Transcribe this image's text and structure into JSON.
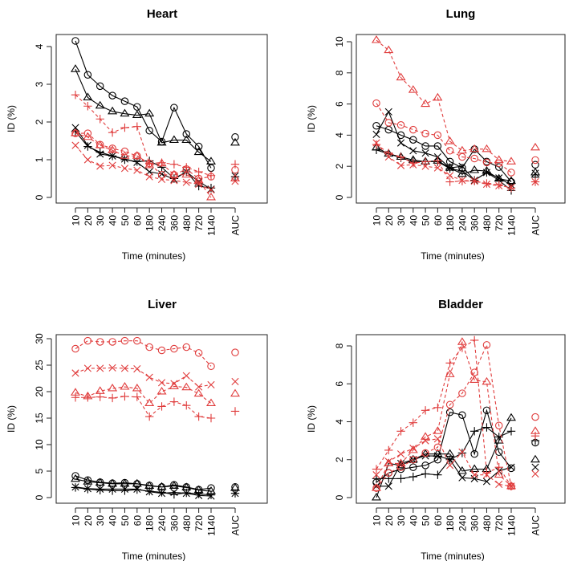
{
  "chart_data": [
    {
      "type": "line",
      "title": "Heart",
      "xlabel": "Time (minutes)",
      "ylabel": "ID (%)",
      "categories": [
        "10",
        "20",
        "30",
        "40",
        "50",
        "60",
        "180",
        "240",
        "360",
        "480",
        "720",
        "1140"
      ],
      "extra_category": "AUC",
      "yticks": [
        0,
        1,
        2,
        3,
        4
      ],
      "ylim": [
        0,
        4
      ],
      "series": [
        {
          "name": "black-circle",
          "color": "#000000",
          "marker": "circle",
          "dashed": false,
          "values": [
            4.15,
            3.25,
            2.95,
            2.7,
            2.55,
            2.4,
            1.77,
            1.48,
            2.38,
            1.68,
            1.35,
            0.78
          ],
          "auc": 1.6
        },
        {
          "name": "black-triangle",
          "color": "#000000",
          "marker": "triangle",
          "dashed": false,
          "values": [
            3.4,
            2.65,
            2.43,
            2.28,
            2.22,
            2.18,
            2.22,
            1.45,
            1.52,
            1.52,
            1.2,
            0.95
          ],
          "auc": 1.45
        },
        {
          "name": "black-plus",
          "color": "#000000",
          "marker": "plus",
          "dashed": false,
          "values": [
            1.75,
            1.35,
            1.2,
            1.1,
            1.0,
            0.95,
            0.97,
            0.8,
            0.5,
            0.68,
            0.3,
            0.25
          ],
          "auc": 0.55
        },
        {
          "name": "black-x",
          "color": "#000000",
          "marker": "x",
          "dashed": false,
          "values": [
            1.85,
            1.38,
            1.15,
            1.1,
            1.02,
            0.93,
            0.68,
            0.62,
            0.48,
            0.68,
            0.42,
            0.22
          ],
          "auc": 0.57
        },
        {
          "name": "red-circle",
          "color": "#e03c3c",
          "marker": "circle",
          "dashed": true,
          "values": [
            1.7,
            1.7,
            1.4,
            1.3,
            1.22,
            1.1,
            0.9,
            0.6,
            0.6,
            0.75,
            0.5,
            0.55
          ],
          "auc": 0.73
        },
        {
          "name": "red-triangle",
          "color": "#e03c3c",
          "marker": "triangle",
          "dashed": true,
          "values": [
            1.7,
            1.6,
            1.38,
            1.25,
            1.1,
            1.1,
            0.85,
            0.9,
            0.6,
            0.6,
            0.45,
            0.0
          ],
          "auc": 0.5
        },
        {
          "name": "red-plus",
          "color": "#e03c3c",
          "marker": "plus",
          "dashed": true,
          "values": [
            2.72,
            2.42,
            2.08,
            1.72,
            1.85,
            1.88,
            0.9,
            0.92,
            0.88,
            0.8,
            0.68,
            0.58
          ],
          "auc": 0.88
        },
        {
          "name": "red-x",
          "color": "#e03c3c",
          "marker": "x",
          "dashed": true,
          "values": [
            1.38,
            1.0,
            0.83,
            0.85,
            0.77,
            0.72,
            0.55,
            0.48,
            0.45,
            0.4,
            0.35,
            0.2
          ],
          "auc": 0.43
        }
      ]
    },
    {
      "type": "line",
      "title": "Lung",
      "xlabel": "Time (minutes)",
      "ylabel": "ID (%)",
      "categories": [
        "10",
        "20",
        "30",
        "40",
        "50",
        "60",
        "180",
        "240",
        "360",
        "480",
        "720",
        "1140"
      ],
      "extra_category": "AUC",
      "yticks": [
        0,
        2,
        4,
        6,
        8,
        10
      ],
      "ylim": [
        0,
        10
      ],
      "series": [
        {
          "name": "black-circle",
          "color": "#000000",
          "marker": "circle",
          "dashed": false,
          "values": [
            4.6,
            4.35,
            4.0,
            3.7,
            3.3,
            3.3,
            2.3,
            1.9,
            3.1,
            2.3,
            1.95,
            1.0
          ],
          "auc": 2.1
        },
        {
          "name": "black-triangle",
          "color": "#000000",
          "marker": "triangle",
          "dashed": false,
          "values": [
            3.2,
            2.8,
            2.6,
            2.4,
            2.3,
            2.35,
            1.9,
            1.5,
            1.75,
            1.7,
            1.2,
            1.05
          ],
          "auc": 1.6
        },
        {
          "name": "black-plus",
          "color": "#000000",
          "marker": "plus",
          "dashed": false,
          "values": [
            3.05,
            2.8,
            2.55,
            2.3,
            2.3,
            2.3,
            1.85,
            1.7,
            1.1,
            1.6,
            1.1,
            0.45
          ],
          "auc": 1.3
        },
        {
          "name": "black-x",
          "color": "#000000",
          "marker": "x",
          "dashed": false,
          "values": [
            4.05,
            5.5,
            3.5,
            3.0,
            2.85,
            2.6,
            1.9,
            2.0,
            1.1,
            1.6,
            1.25,
            0.8
          ],
          "auc": 1.55
        },
        {
          "name": "red-circle",
          "color": "#e03c3c",
          "marker": "circle",
          "dashed": true,
          "values": [
            6.05,
            4.8,
            4.65,
            4.35,
            4.1,
            4.0,
            3.0,
            2.6,
            2.5,
            2.25,
            2.2,
            1.6
          ],
          "auc": 2.4
        },
        {
          "name": "red-triangle",
          "color": "#e03c3c",
          "marker": "triangle",
          "dashed": true,
          "values": [
            10.1,
            9.45,
            7.7,
            6.9,
            6.0,
            6.4,
            3.6,
            3.0,
            3.1,
            3.1,
            2.4,
            2.3
          ],
          "auc": 3.2
        },
        {
          "name": "red-plus",
          "color": "#e03c3c",
          "marker": "plus",
          "dashed": true,
          "values": [
            3.4,
            2.85,
            2.6,
            2.2,
            2.3,
            2.35,
            1.0,
            1.05,
            1.05,
            0.9,
            0.8,
            0.6
          ],
          "auc": 1.0
        },
        {
          "name": "red-x",
          "color": "#e03c3c",
          "marker": "x",
          "dashed": true,
          "values": [
            3.5,
            2.6,
            2.05,
            2.1,
            2.0,
            1.9,
            1.4,
            1.1,
            1.05,
            0.85,
            0.75,
            0.65
          ],
          "auc": 1.0
        }
      ]
    },
    {
      "type": "line",
      "title": "Liver",
      "xlabel": "Time (minutes)",
      "ylabel": "ID (%)",
      "categories": [
        "10",
        "20",
        "30",
        "40",
        "50",
        "60",
        "180",
        "240",
        "360",
        "480",
        "720",
        "1140"
      ],
      "extra_category": "AUC",
      "yticks": [
        0,
        5,
        10,
        15,
        20,
        25,
        30
      ],
      "ylim": [
        0,
        30
      ],
      "series": [
        {
          "name": "black-circle",
          "color": "#000000",
          "marker": "circle",
          "dashed": false,
          "values": [
            4.1,
            3.3,
            2.9,
            2.7,
            2.8,
            2.6,
            2.3,
            2.0,
            2.4,
            2.0,
            1.5,
            1.8
          ],
          "auc": 2.0
        },
        {
          "name": "black-triangle",
          "color": "#000000",
          "marker": "triangle",
          "dashed": false,
          "values": [
            3.5,
            3.0,
            2.8,
            2.6,
            2.6,
            2.6,
            2.2,
            2.0,
            2.2,
            1.9,
            1.4,
            1.2
          ],
          "auc": 1.8
        },
        {
          "name": "black-plus",
          "color": "#000000",
          "marker": "plus",
          "dashed": false,
          "values": [
            1.9,
            1.6,
            1.4,
            1.3,
            1.3,
            1.5,
            1.2,
            1.0,
            0.6,
            0.9,
            0.7,
            0.5
          ],
          "auc": 0.8
        },
        {
          "name": "black-x",
          "color": "#000000",
          "marker": "x",
          "dashed": false,
          "values": [
            2.0,
            1.7,
            1.6,
            1.6,
            1.6,
            1.6,
            1.1,
            0.8,
            1.0,
            0.8,
            0.4,
            0.3
          ],
          "auc": 0.8
        },
        {
          "name": "red-circle",
          "color": "#e03c3c",
          "marker": "circle",
          "dashed": true,
          "values": [
            28.1,
            29.6,
            29.4,
            29.4,
            29.6,
            29.6,
            28.4,
            27.8,
            28.1,
            28.4,
            27.3,
            24.8
          ],
          "auc": 27.4
        },
        {
          "name": "red-triangle",
          "color": "#e03c3c",
          "marker": "triangle",
          "dashed": true,
          "values": [
            19.8,
            19.1,
            20.1,
            20.6,
            20.9,
            20.6,
            17.8,
            20.0,
            21.0,
            20.8,
            19.6,
            17.8
          ],
          "auc": 19.6
        },
        {
          "name": "red-plus",
          "color": "#e03c3c",
          "marker": "plus",
          "dashed": true,
          "values": [
            18.9,
            18.9,
            19.0,
            18.8,
            19.1,
            19.0,
            15.3,
            17.2,
            18.1,
            17.4,
            15.3,
            15.0
          ],
          "auc": 16.3
        },
        {
          "name": "red-x",
          "color": "#e03c3c",
          "marker": "x",
          "dashed": true,
          "values": [
            23.5,
            24.4,
            24.4,
            24.5,
            24.4,
            24.3,
            22.7,
            21.7,
            21.5,
            23.0,
            20.9,
            21.3
          ],
          "auc": 21.9
        }
      ]
    },
    {
      "type": "line",
      "title": "Bladder",
      "xlabel": "Time (minutes)",
      "ylabel": "ID (%)",
      "categories": [
        "10",
        "20",
        "30",
        "40",
        "50",
        "60",
        "180",
        "240",
        "360",
        "480",
        "720",
        "1140"
      ],
      "extra_category": "AUC",
      "yticks": [
        0,
        2,
        4,
        6,
        8
      ],
      "ylim": [
        0,
        8
      ],
      "series": [
        {
          "name": "black-circle",
          "color": "#000000",
          "marker": "circle",
          "dashed": false,
          "values": [
            0.8,
            1.3,
            1.5,
            1.6,
            1.7,
            2.0,
            4.5,
            4.35,
            2.3,
            4.6,
            2.4,
            1.55
          ],
          "auc": 2.9
        },
        {
          "name": "black-triangle",
          "color": "#000000",
          "marker": "triangle",
          "dashed": false,
          "values": [
            0.0,
            1.8,
            1.7,
            2.0,
            2.3,
            2.3,
            2.3,
            1.4,
            1.5,
            1.5,
            3.0,
            4.2
          ],
          "auc": 2.0
        },
        {
          "name": "black-plus",
          "color": "#000000",
          "marker": "plus",
          "dashed": false,
          "values": [
            1.0,
            1.0,
            1.0,
            1.1,
            1.25,
            1.2,
            2.0,
            2.35,
            3.5,
            3.7,
            3.2,
            3.5
          ],
          "auc": 3.0
        },
        {
          "name": "black-x",
          "color": "#000000",
          "marker": "x",
          "dashed": false,
          "values": [
            0.6,
            0.6,
            1.8,
            2.0,
            2.2,
            2.2,
            2.0,
            1.05,
            1.0,
            0.85,
            1.4,
            1.6
          ],
          "auc": 1.6
        },
        {
          "name": "red-circle",
          "color": "#e03c3c",
          "marker": "circle",
          "dashed": true,
          "values": [
            0.5,
            1.3,
            1.6,
            2.0,
            2.35,
            2.65,
            4.9,
            5.5,
            6.6,
            8.05,
            3.8,
            0.6
          ],
          "auc": 4.25
        },
        {
          "name": "red-triangle",
          "color": "#e03c3c",
          "marker": "triangle",
          "dashed": true,
          "values": [
            0.5,
            1.8,
            1.8,
            2.5,
            3.2,
            3.5,
            6.5,
            8.2,
            6.2,
            6.1,
            1.2,
            0.6
          ],
          "auc": 3.5
        },
        {
          "name": "red-plus",
          "color": "#e03c3c",
          "marker": "plus",
          "dashed": true,
          "values": [
            1.5,
            2.5,
            3.5,
            3.95,
            4.6,
            4.75,
            7.1,
            7.9,
            8.3,
            1.3,
            1.6,
            0.6
          ],
          "auc": 3.25
        },
        {
          "name": "red-x",
          "color": "#e03c3c",
          "marker": "x",
          "dashed": true,
          "values": [
            1.2,
            1.9,
            2.3,
            2.6,
            3.0,
            3.1,
            1.7,
            2.4,
            1.2,
            1.2,
            0.7,
            0.6
          ],
          "auc": 1.25
        }
      ]
    }
  ]
}
